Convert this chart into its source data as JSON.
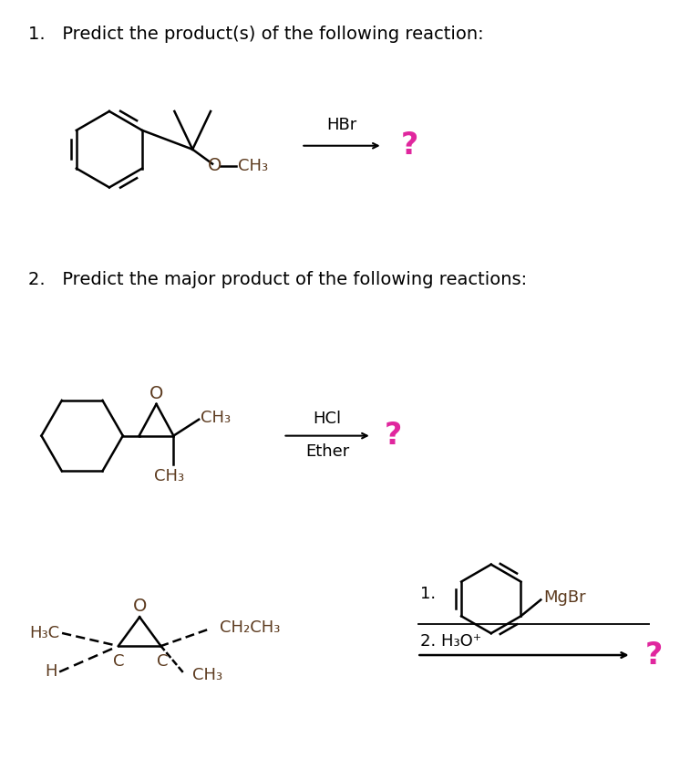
{
  "title1": "1.   Predict the product(s) of the following reaction:",
  "title2": "2.   Predict the major product of the following reactions:",
  "reagent1": "HBr",
  "reagent2_line1": "HCl",
  "reagent2_line2": "Ether",
  "question_mark_color": "#e0279e",
  "text_color": "#000000",
  "bond_color": "#000000",
  "label_color": "#5c3a1e",
  "background": "#ffffff",
  "figsize": [
    7.46,
    8.44
  ],
  "dpi": 100
}
